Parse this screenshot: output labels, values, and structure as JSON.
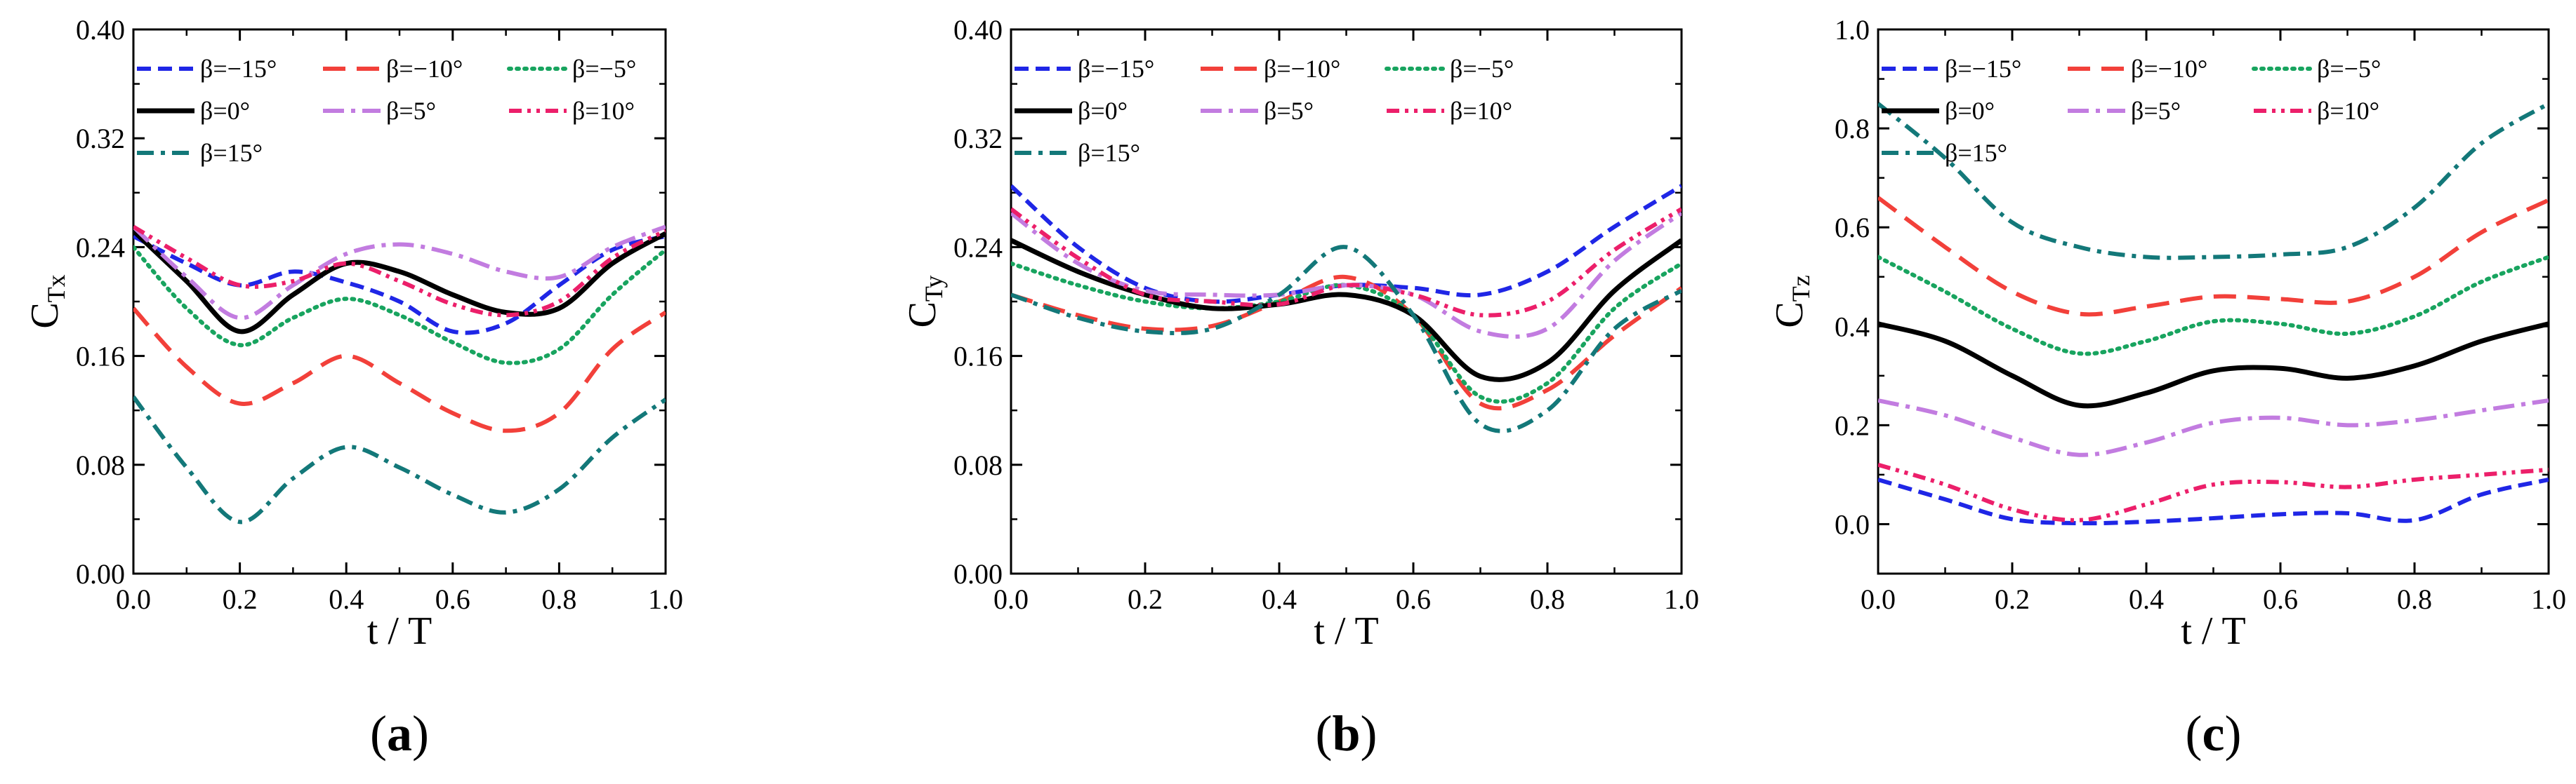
{
  "colors": {
    "b-15": "#1f26e6",
    "b-10": "#f2403a",
    "b-5": "#18a45f",
    "b0": "#000000",
    "b5": "#c27ce0",
    "b10": "#ec1f6a",
    "b15": "#137879"
  },
  "styles": {
    "b-15": "dash",
    "b-10": "longdash",
    "b-5": "dot",
    "b0": "solid",
    "b5": "dashdot",
    "b10": "dashdotdot",
    "b15": "dashdot2"
  },
  "chart_data": [
    {
      "type": "line",
      "panel_label": "(a)",
      "label_text": "a",
      "xlabel": "t  / T",
      "ylabel": "C",
      "ylabel_sub": "Tx",
      "xlim": [
        0,
        1.0
      ],
      "ylim": [
        0,
        0.4
      ],
      "xticks": [
        "0.0",
        "0.2",
        "0.4",
        "0.6",
        "0.8",
        "1.0"
      ],
      "yticks": [
        "0.00",
        "0.08",
        "0.16",
        "0.24",
        "0.32",
        "0.40"
      ],
      "legend": {
        "rows": [
          [
            "b-15",
            "b-10",
            "b-5"
          ],
          [
            "b0",
            "b5",
            "b10"
          ],
          [
            "b15"
          ]
        ]
      },
      "series": [
        {
          "key": "b-15",
          "name": "β=−15°",
          "x": [
            0,
            0.1,
            0.2,
            0.3,
            0.4,
            0.5,
            0.6,
            0.7,
            0.8,
            0.9,
            1.0
          ],
          "values": [
            0.248,
            0.228,
            0.212,
            0.222,
            0.214,
            0.2,
            0.178,
            0.184,
            0.212,
            0.238,
            0.248
          ]
        },
        {
          "key": "b-10",
          "name": "β=−10°",
          "x": [
            0,
            0.1,
            0.2,
            0.3,
            0.4,
            0.5,
            0.6,
            0.7,
            0.8,
            0.9,
            1.0
          ],
          "values": [
            0.195,
            0.152,
            0.125,
            0.14,
            0.16,
            0.14,
            0.118,
            0.105,
            0.118,
            0.165,
            0.192
          ]
        },
        {
          "key": "b-5",
          "name": "β=−5°",
          "x": [
            0,
            0.1,
            0.2,
            0.3,
            0.4,
            0.5,
            0.6,
            0.7,
            0.8,
            0.9,
            1.0
          ],
          "values": [
            0.24,
            0.195,
            0.168,
            0.188,
            0.202,
            0.19,
            0.17,
            0.155,
            0.165,
            0.205,
            0.238
          ]
        },
        {
          "key": "b0",
          "name": "β=0°",
          "x": [
            0,
            0.1,
            0.2,
            0.3,
            0.4,
            0.5,
            0.6,
            0.7,
            0.8,
            0.9,
            1.0
          ],
          "values": [
            0.252,
            0.215,
            0.178,
            0.205,
            0.228,
            0.222,
            0.205,
            0.192,
            0.195,
            0.228,
            0.25
          ]
        },
        {
          "key": "b5",
          "name": "β=5°",
          "x": [
            0,
            0.1,
            0.2,
            0.3,
            0.4,
            0.5,
            0.6,
            0.7,
            0.8,
            0.9,
            1.0
          ],
          "values": [
            0.255,
            0.218,
            0.188,
            0.212,
            0.235,
            0.242,
            0.235,
            0.222,
            0.218,
            0.24,
            0.255
          ]
        },
        {
          "key": "b10",
          "name": "β=10°",
          "x": [
            0,
            0.1,
            0.2,
            0.3,
            0.4,
            0.5,
            0.6,
            0.7,
            0.8,
            0.9,
            1.0
          ],
          "values": [
            0.255,
            0.232,
            0.212,
            0.215,
            0.228,
            0.215,
            0.198,
            0.19,
            0.2,
            0.232,
            0.252
          ]
        },
        {
          "key": "b15",
          "name": "β=15°",
          "x": [
            0,
            0.1,
            0.2,
            0.3,
            0.4,
            0.5,
            0.6,
            0.7,
            0.8,
            0.9,
            1.0
          ],
          "values": [
            0.13,
            0.078,
            0.038,
            0.07,
            0.093,
            0.078,
            0.058,
            0.045,
            0.062,
            0.1,
            0.128
          ]
        }
      ]
    },
    {
      "type": "line",
      "panel_label": "(b)",
      "label_text": "b",
      "xlabel": "t  / T",
      "ylabel": "C",
      "ylabel_sub": "Ty",
      "xlim": [
        0,
        1.0
      ],
      "ylim": [
        0,
        0.4
      ],
      "xticks": [
        "0.0",
        "0.2",
        "0.4",
        "0.6",
        "0.8",
        "1.0"
      ],
      "yticks": [
        "0.00",
        "0.08",
        "0.16",
        "0.24",
        "0.32",
        "0.40"
      ],
      "legend": {
        "rows": [
          [
            "b-15",
            "b-10",
            "b-5"
          ],
          [
            "b0",
            "b5",
            "b10"
          ],
          [
            "b15"
          ]
        ]
      },
      "series": [
        {
          "key": "b-15",
          "name": "β=−15°",
          "x": [
            0,
            0.1,
            0.2,
            0.3,
            0.4,
            0.5,
            0.6,
            0.7,
            0.8,
            0.9,
            1.0
          ],
          "values": [
            0.285,
            0.24,
            0.21,
            0.2,
            0.205,
            0.212,
            0.21,
            0.205,
            0.222,
            0.255,
            0.285
          ]
        },
        {
          "key": "b-10",
          "name": "β=−10°",
          "x": [
            0,
            0.1,
            0.2,
            0.3,
            0.4,
            0.5,
            0.6,
            0.7,
            0.8,
            0.9,
            1.0
          ],
          "values": [
            0.205,
            0.19,
            0.18,
            0.182,
            0.2,
            0.218,
            0.19,
            0.125,
            0.135,
            0.175,
            0.21
          ]
        },
        {
          "key": "b-5",
          "name": "β=−5°",
          "x": [
            0,
            0.1,
            0.2,
            0.3,
            0.4,
            0.5,
            0.6,
            0.7,
            0.8,
            0.9,
            1.0
          ],
          "values": [
            0.228,
            0.212,
            0.2,
            0.195,
            0.2,
            0.212,
            0.19,
            0.13,
            0.14,
            0.195,
            0.228
          ]
        },
        {
          "key": "b0",
          "name": "β=0°",
          "x": [
            0,
            0.1,
            0.2,
            0.3,
            0.4,
            0.5,
            0.6,
            0.7,
            0.8,
            0.9,
            1.0
          ],
          "values": [
            0.245,
            0.222,
            0.205,
            0.195,
            0.198,
            0.205,
            0.19,
            0.145,
            0.155,
            0.208,
            0.245
          ]
        },
        {
          "key": "b5",
          "name": "β=5°",
          "x": [
            0,
            0.1,
            0.2,
            0.3,
            0.4,
            0.5,
            0.6,
            0.7,
            0.8,
            0.9,
            1.0
          ],
          "values": [
            0.265,
            0.228,
            0.208,
            0.205,
            0.205,
            0.212,
            0.205,
            0.178,
            0.18,
            0.23,
            0.265
          ]
        },
        {
          "key": "b10",
          "name": "β=10°",
          "x": [
            0,
            0.1,
            0.2,
            0.3,
            0.4,
            0.5,
            0.6,
            0.7,
            0.8,
            0.9,
            1.0
          ],
          "values": [
            0.268,
            0.232,
            0.205,
            0.2,
            0.198,
            0.212,
            0.205,
            0.19,
            0.2,
            0.238,
            0.268
          ]
        },
        {
          "key": "b15",
          "name": "β=15°",
          "x": [
            0,
            0.1,
            0.2,
            0.3,
            0.4,
            0.5,
            0.6,
            0.7,
            0.8,
            0.9,
            1.0
          ],
          "values": [
            0.205,
            0.188,
            0.178,
            0.18,
            0.205,
            0.24,
            0.19,
            0.11,
            0.12,
            0.18,
            0.208
          ]
        }
      ]
    },
    {
      "type": "line",
      "panel_label": "(c)",
      "label_text": "c",
      "xlabel": "t  / T",
      "ylabel": "C",
      "ylabel_sub": "Tz",
      "xlim": [
        0,
        1.0
      ],
      "ylim": [
        -0.1,
        1.0
      ],
      "xticks": [
        "0.0",
        "0.2",
        "0.4",
        "0.6",
        "0.8",
        "1.0"
      ],
      "yticks": [
        "0.0",
        "0.2",
        "0.4",
        "0.6",
        "0.8",
        "1.0"
      ],
      "ytick_values": [
        0,
        0.2,
        0.4,
        0.6,
        0.8,
        1.0
      ],
      "legend": {
        "rows": [
          [
            "b-15",
            "b-10",
            "b-5"
          ],
          [
            "b0",
            "b5",
            "b10"
          ],
          [
            "b15"
          ]
        ]
      },
      "series": [
        {
          "key": "b-15",
          "name": "β=−15°",
          "x": [
            0,
            0.1,
            0.2,
            0.3,
            0.4,
            0.5,
            0.6,
            0.7,
            0.8,
            0.9,
            1.0
          ],
          "values": [
            0.09,
            0.05,
            0.01,
            0.002,
            0.005,
            0.012,
            0.02,
            0.022,
            0.008,
            0.06,
            0.09
          ]
        },
        {
          "key": "b-10",
          "name": "β=−10°",
          "x": [
            0,
            0.1,
            0.2,
            0.3,
            0.4,
            0.5,
            0.6,
            0.7,
            0.8,
            0.9,
            1.0
          ],
          "values": [
            0.66,
            0.56,
            0.47,
            0.425,
            0.44,
            0.46,
            0.455,
            0.45,
            0.5,
            0.59,
            0.655
          ]
        },
        {
          "key": "b-5",
          "name": "β=−5°",
          "x": [
            0,
            0.1,
            0.2,
            0.3,
            0.4,
            0.5,
            0.6,
            0.7,
            0.8,
            0.9,
            1.0
          ],
          "values": [
            0.54,
            0.47,
            0.395,
            0.345,
            0.37,
            0.41,
            0.405,
            0.385,
            0.42,
            0.49,
            0.54
          ]
        },
        {
          "key": "b0",
          "name": "β=0°",
          "x": [
            0,
            0.1,
            0.2,
            0.3,
            0.4,
            0.5,
            0.6,
            0.7,
            0.8,
            0.9,
            1.0
          ],
          "values": [
            0.405,
            0.37,
            0.3,
            0.24,
            0.265,
            0.31,
            0.315,
            0.295,
            0.32,
            0.37,
            0.405
          ]
        },
        {
          "key": "b5",
          "name": "β=5°",
          "x": [
            0,
            0.1,
            0.2,
            0.3,
            0.4,
            0.5,
            0.6,
            0.7,
            0.8,
            0.9,
            1.0
          ],
          "values": [
            0.25,
            0.22,
            0.175,
            0.14,
            0.165,
            0.205,
            0.215,
            0.2,
            0.21,
            0.23,
            0.25
          ]
        },
        {
          "key": "b10",
          "name": "β=10°",
          "x": [
            0,
            0.1,
            0.2,
            0.3,
            0.4,
            0.5,
            0.6,
            0.7,
            0.8,
            0.9,
            1.0
          ],
          "values": [
            0.12,
            0.08,
            0.03,
            0.008,
            0.04,
            0.08,
            0.085,
            0.075,
            0.09,
            0.1,
            0.11
          ]
        },
        {
          "key": "b15",
          "name": "β=15°",
          "x": [
            0,
            0.1,
            0.2,
            0.3,
            0.4,
            0.5,
            0.6,
            0.7,
            0.8,
            0.9,
            1.0
          ],
          "values": [
            0.85,
            0.74,
            0.61,
            0.56,
            0.54,
            0.54,
            0.545,
            0.56,
            0.64,
            0.77,
            0.85
          ]
        }
      ]
    }
  ]
}
